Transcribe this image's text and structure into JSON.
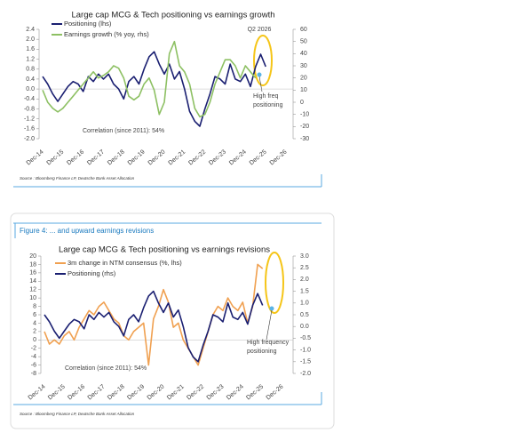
{
  "figure_caption": "Figure 4: ... and upward earnings revisions",
  "chart_data": [
    {
      "type": "line",
      "title": "Large cap MCG & Tech positioning vs earnings growth",
      "categories": [
        "Dec-14",
        null,
        null,
        null,
        "Dec-15",
        null,
        null,
        null,
        "Dec-16",
        null,
        null,
        null,
        "Dec-17",
        null,
        null,
        null,
        "Dec-18",
        null,
        null,
        null,
        "Dec-19",
        null,
        null,
        null,
        "Dec-20",
        null,
        null,
        null,
        "Dec-21",
        null,
        null,
        null,
        "Dec-22",
        null,
        null,
        null,
        "Dec-23",
        null,
        null,
        null,
        "Dec-24",
        null,
        null,
        null,
        "Dec-25",
        null,
        null,
        null,
        "Dec-26"
      ],
      "series": [
        {
          "name": "Positioning (lhs)",
          "color": "#1a1f71",
          "axis": "y",
          "values": [
            0.5,
            0.2,
            -0.2,
            -0.5,
            -0.2,
            0.1,
            0.3,
            0.2,
            -0.1,
            0.5,
            0.3,
            0.6,
            0.4,
            0.6,
            0.2,
            0.0,
            -0.4,
            0.3,
            0.5,
            0.2,
            0.8,
            1.3,
            1.5,
            1.0,
            0.6,
            1.0,
            0.4,
            0.7,
            0.0,
            -0.9,
            -1.3,
            -1.5,
            -0.8,
            -0.2,
            0.5,
            0.4,
            0.2,
            1.0,
            0.4,
            0.3,
            0.6,
            0.1,
            0.9,
            1.4,
            0.9,
            null,
            null,
            null,
            null
          ]
        },
        {
          "name": "Earnings growth (% yoy, rhs)",
          "color": "#8dc063",
          "axis": "y2",
          "values": [
            10,
            0,
            -5,
            -8,
            -5,
            0,
            5,
            10,
            15,
            20,
            25,
            20,
            22,
            25,
            30,
            28,
            20,
            5,
            2,
            5,
            15,
            20,
            10,
            -10,
            0,
            40,
            50,
            30,
            25,
            15,
            -5,
            -12,
            -10,
            0,
            15,
            25,
            35,
            35,
            30,
            20,
            30,
            25,
            20,
            null,
            null,
            null,
            null,
            null,
            null
          ]
        }
      ],
      "ylim": [
        -2.0,
        2.4
      ],
      "yticks": [
        {
          "value": 2.4,
          "label": "2.4"
        },
        {
          "value": 2,
          "label": "2.0"
        },
        1.6,
        1.2,
        0.8,
        0.4,
        {
          "value": 0,
          "label": "0.0"
        },
        -0.4,
        -0.8,
        -1.2,
        -1.6,
        {
          "value": -2,
          "label": "-2.0"
        }
      ],
      "y2lim": [
        -30,
        60
      ],
      "y2ticks": [
        60,
        50,
        40,
        30,
        20,
        10,
        0,
        -10,
        -20,
        -30
      ],
      "annotations": [
        "Q2 2026",
        "High freq",
        "positioning",
        "Correlation (since 2011): 54%"
      ],
      "source": "Source : Bloomberg Finance LP, Deutsche Bank Asset Allocation"
    },
    {
      "type": "line",
      "title": "Large cap MCG & Tech positioning vs earnings revisions",
      "categories": [
        "Dec-14",
        null,
        null,
        null,
        "Dec-15",
        null,
        null,
        null,
        "Dec-16",
        null,
        null,
        null,
        "Dec-17",
        null,
        null,
        null,
        "Dec-18",
        null,
        null,
        null,
        "Dec-19",
        null,
        null,
        null,
        "Dec-20",
        null,
        null,
        null,
        "Dec-21",
        null,
        null,
        null,
        "Dec-22",
        null,
        null,
        null,
        "Dec-23",
        null,
        null,
        null,
        "Dec-24",
        null,
        null,
        null,
        "Dec-25",
        null,
        null,
        null,
        "Dec-26"
      ],
      "series": [
        {
          "name": "3m change in NTM consensus (%, lhs)",
          "color": "#f0a050",
          "axis": "y",
          "values": [
            2,
            -1,
            0,
            -1,
            1,
            2,
            0,
            3,
            5,
            7,
            6,
            8,
            9,
            7,
            5,
            4,
            1,
            0,
            2,
            3,
            4,
            -6,
            5,
            8,
            12,
            9,
            3,
            4,
            0,
            -2,
            -4,
            -6,
            -2,
            2,
            6,
            8,
            7,
            10,
            8,
            7,
            9,
            4,
            8,
            18,
            17,
            null,
            null,
            null,
            null
          ]
        },
        {
          "name": "Positioning (rhs)",
          "color": "#1a1f71",
          "axis": "y2",
          "values": [
            0.5,
            0.2,
            -0.2,
            -0.5,
            -0.2,
            0.1,
            0.3,
            0.2,
            -0.1,
            0.5,
            0.3,
            0.6,
            0.4,
            0.6,
            0.2,
            0.0,
            -0.4,
            0.3,
            0.5,
            0.2,
            0.8,
            1.3,
            1.5,
            1.0,
            0.6,
            1.0,
            0.4,
            0.7,
            0.0,
            -0.9,
            -1.3,
            -1.5,
            -0.8,
            -0.2,
            0.5,
            0.4,
            0.2,
            1.0,
            0.4,
            0.3,
            0.6,
            0.1,
            0.9,
            1.4,
            0.9,
            null,
            null,
            null,
            null
          ]
        }
      ],
      "ylim": [
        -8,
        20
      ],
      "yticks": [
        20,
        18,
        16,
        14,
        12,
        10,
        8,
        6,
        4,
        2,
        0,
        -2,
        -4,
        -6,
        -8
      ],
      "y2lim": [
        -2.0,
        3.0
      ],
      "y2ticks": [
        {
          "value": 3,
          "label": "3.0"
        },
        2.5,
        {
          "value": 2,
          "label": "2.0"
        },
        1.5,
        {
          "value": 1,
          "label": "1.0"
        },
        0.5,
        {
          "value": 0,
          "label": "0.0"
        },
        -0.5,
        {
          "value": -1,
          "label": "-1.0"
        },
        -1.5,
        {
          "value": -2,
          "label": "-2.0"
        }
      ],
      "annotations": [
        "High frequency",
        "positioning",
        "Correlation (since 2011): 54%"
      ],
      "source": "Source : Bloomberg Finance LP, Deutsche Bank Asset Allocation"
    }
  ]
}
